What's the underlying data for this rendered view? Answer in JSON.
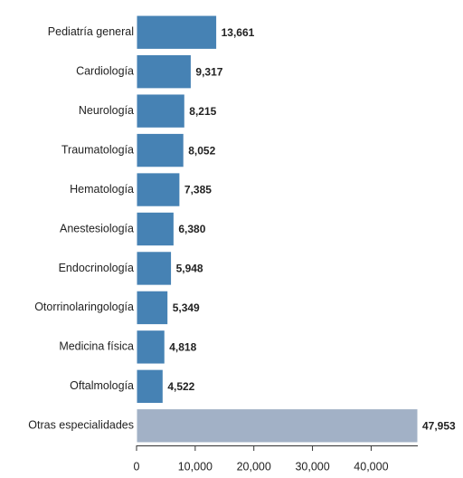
{
  "chart_data": {
    "type": "bar",
    "orientation": "horizontal",
    "categories": [
      "Pediatría general",
      "Cardiología",
      "Neurología",
      "Traumatología",
      "Hematología",
      "Anestesiología",
      "Endocrinología",
      "Otorrinolaringología",
      "Medicina física",
      "Oftalmología",
      "Otras especialidades"
    ],
    "values": [
      13661,
      9317,
      8215,
      8052,
      7385,
      6380,
      5948,
      5349,
      4818,
      4522,
      47953
    ],
    "value_labels": [
      "13,661",
      "9,317",
      "8,215",
      "8,052",
      "7,385",
      "6,380",
      "5,948",
      "5,349",
      "4,818",
      "4,522",
      "47,953"
    ],
    "colors": [
      "#4682b4",
      "#4682b4",
      "#4682b4",
      "#4682b4",
      "#4682b4",
      "#4682b4",
      "#4682b4",
      "#4682b4",
      "#4682b4",
      "#4682b4",
      "#a2b1c6"
    ],
    "xlim": [
      0,
      47953
    ],
    "xticks": [
      0,
      {
        "value": 10000,
        "label": "10,000"
      },
      {
        "value": 20000,
        "label": "20,000"
      },
      {
        "value": 30000,
        "label": "30,000"
      },
      {
        "value": 40000,
        "label": "40,000"
      }
    ]
  }
}
